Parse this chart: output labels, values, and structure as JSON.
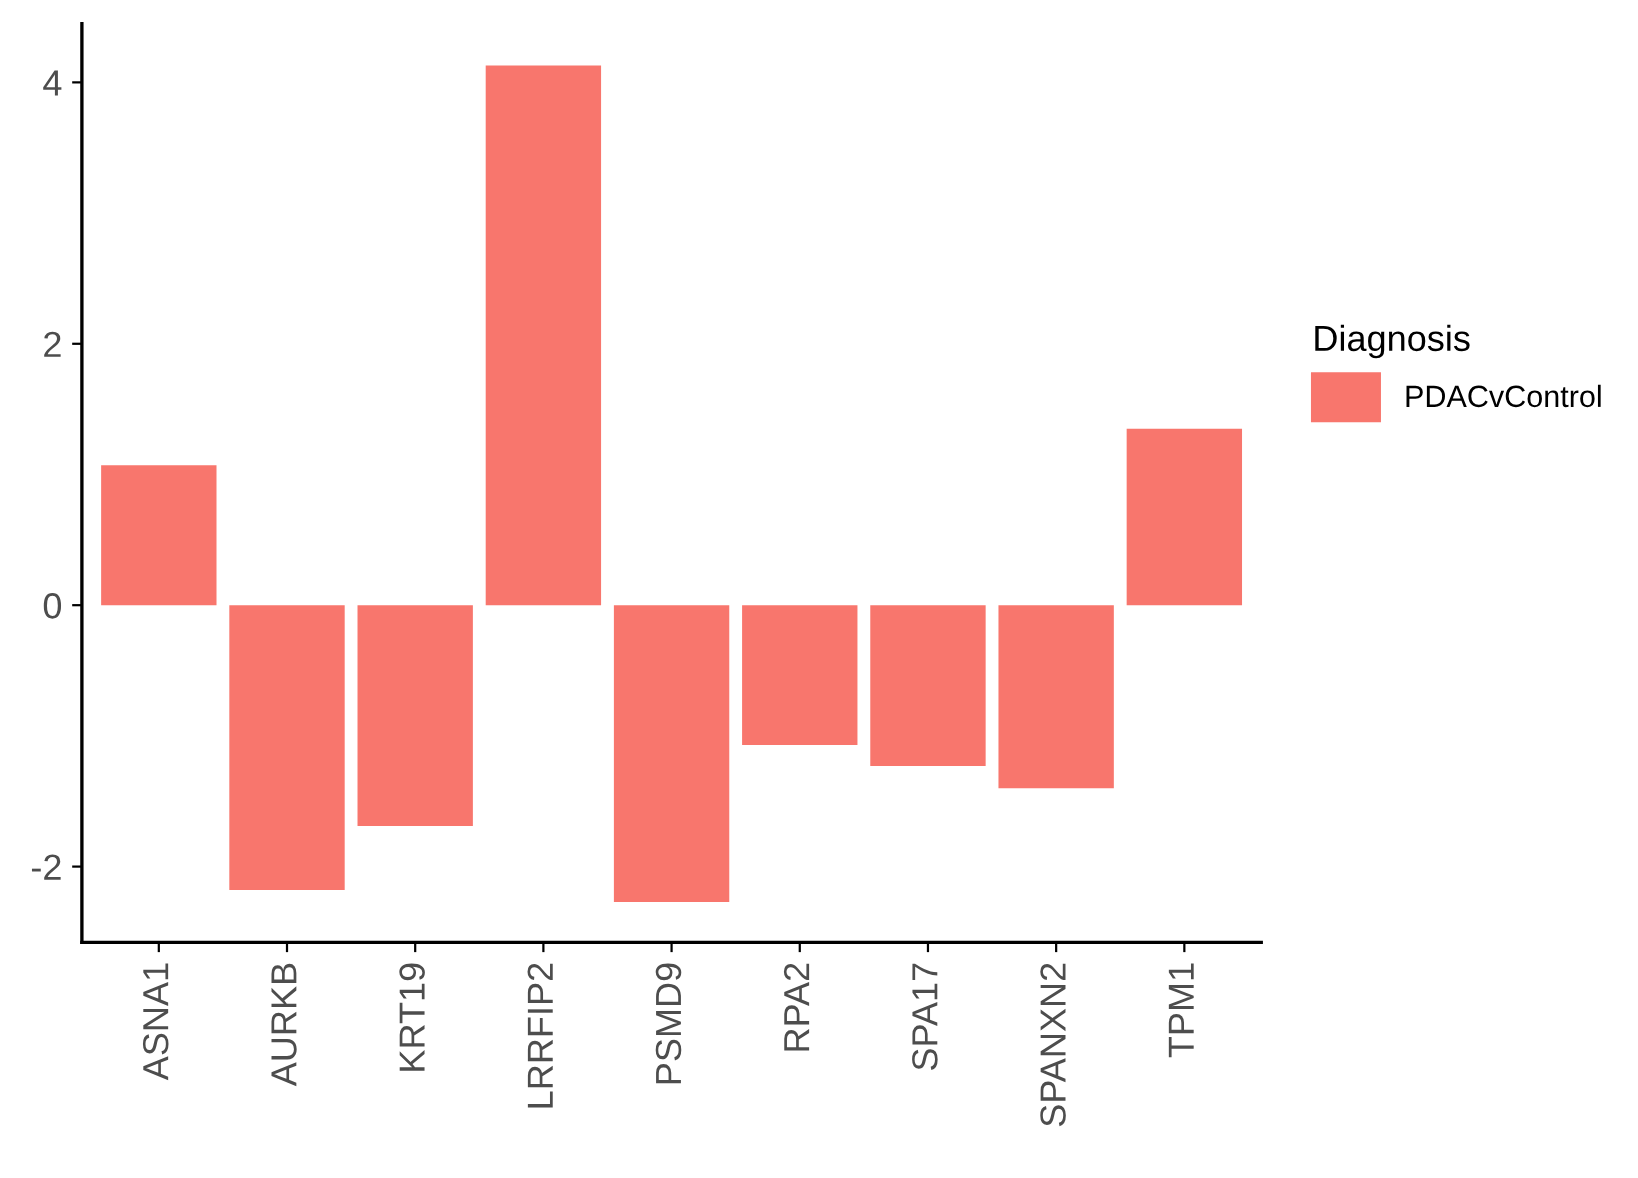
{
  "chart_data": {
    "type": "bar",
    "categories": [
      "ASNA1",
      "AURKB",
      "KRT19",
      "LRRFIP2",
      "PSMD9",
      "RPA2",
      "SPA17",
      "SPANXN2",
      "TPM1"
    ],
    "series": [
      {
        "name": "PDACvControl",
        "color": "#f8766d",
        "values": [
          1.07,
          -2.18,
          -1.69,
          4.13,
          -2.27,
          -1.07,
          -1.23,
          -1.4,
          1.35
        ]
      }
    ],
    "legend_title": "Diagnosis",
    "legend": "right",
    "ylim": [
      -2.58,
      4.45
    ],
    "yticks": [
      {
        "value": -2,
        "label": "-2"
      },
      0,
      2,
      4
    ],
    "grid": false
  }
}
